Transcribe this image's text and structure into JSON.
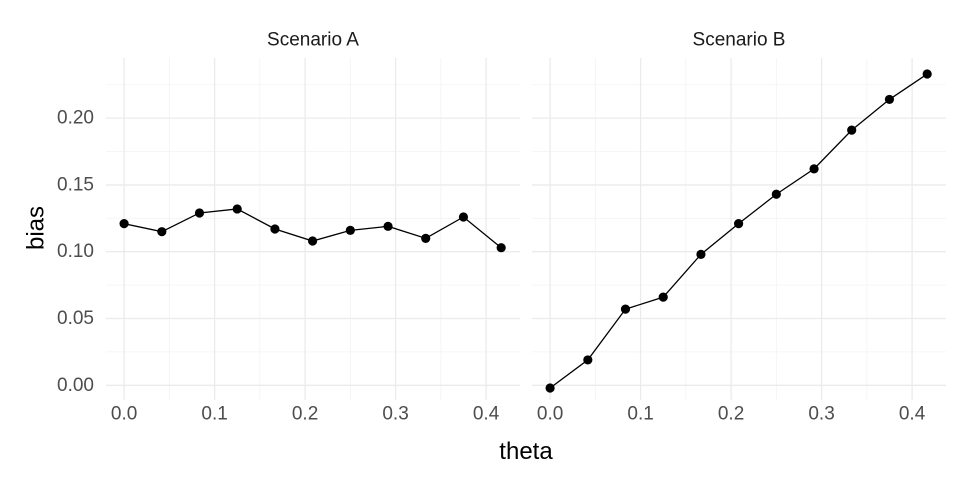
{
  "chart_data": {
    "type": "line",
    "xlabel": "theta",
    "ylabel": "bias",
    "xlim": [
      -0.02,
      0.4375
    ],
    "ylim": [
      -0.011,
      0.245
    ],
    "x_ticks": [
      0.0,
      0.1,
      0.2,
      0.3,
      0.4
    ],
    "x_tick_labels": [
      "0.0",
      "0.1",
      "0.2",
      "0.3",
      "0.4"
    ],
    "y_ticks": [
      0.0,
      0.05,
      0.1,
      0.15,
      0.2
    ],
    "y_tick_labels": [
      "0.00",
      "0.05",
      "0.10",
      "0.15",
      "0.20"
    ],
    "grid": true,
    "line_color": "#000000",
    "panels": [
      {
        "title": "Scenario A",
        "x": [
          0.0,
          0.0417,
          0.0833,
          0.125,
          0.1667,
          0.2083,
          0.25,
          0.2917,
          0.3333,
          0.375,
          0.4167
        ],
        "y": [
          0.121,
          0.115,
          0.129,
          0.132,
          0.117,
          0.108,
          0.116,
          0.119,
          0.11,
          0.126,
          0.103
        ]
      },
      {
        "title": "Scenario B",
        "x": [
          0.0,
          0.0417,
          0.0833,
          0.125,
          0.1667,
          0.2083,
          0.25,
          0.2917,
          0.3333,
          0.375,
          0.4167
        ],
        "y": [
          -0.002,
          0.019,
          0.057,
          0.066,
          0.098,
          0.121,
          0.143,
          0.162,
          0.191,
          0.214,
          0.233
        ]
      }
    ]
  }
}
